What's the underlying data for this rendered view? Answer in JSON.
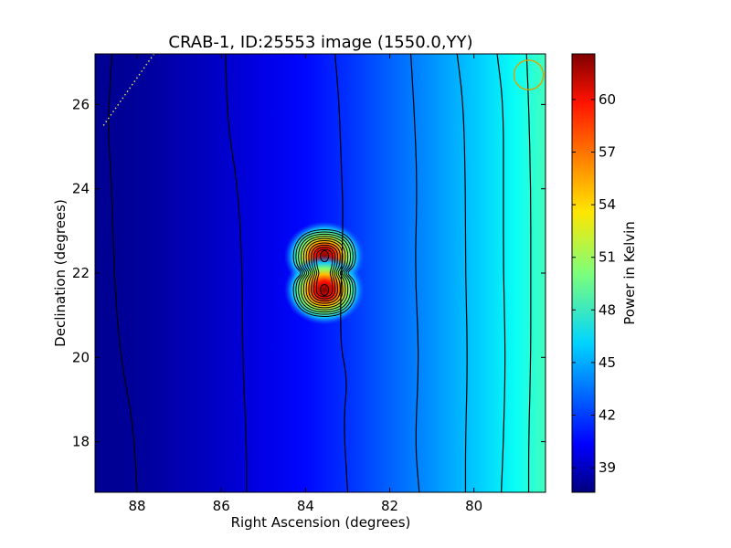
{
  "chart_data": {
    "type": "heatmap",
    "title": "CRAB-1, ID:25553 image (1550.0,YY)",
    "xlabel": "Right Ascension (degrees)",
    "ylabel": "Declination (degrees)",
    "xlim": [
      89.0,
      78.3
    ],
    "ylim": [
      16.8,
      27.2
    ],
    "x_ticks": [
      88,
      86,
      84,
      82,
      80
    ],
    "x_tick_labels": [
      "88",
      "86",
      "84",
      "82",
      "80"
    ],
    "y_ticks": [
      18,
      20,
      22,
      24,
      26
    ],
    "y_tick_labels": [
      "18",
      "20",
      "22",
      "24",
      "26"
    ],
    "colorbar": {
      "label": "Power in Kelvin",
      "range": [
        37.6,
        62.6
      ],
      "ticks": [
        39,
        42,
        45,
        48,
        51,
        54,
        57,
        60
      ],
      "tick_labels": [
        "39",
        "42",
        "45",
        "48",
        "51",
        "54",
        "57",
        "60"
      ],
      "colormap": "jet"
    },
    "background_gradient": [
      {
        "ra": 89.0,
        "kelvin": 38.0
      },
      {
        "ra": 87.8,
        "kelvin": 38.3
      },
      {
        "ra": 87.0,
        "kelvin": 38.8
      },
      {
        "ra": 86.0,
        "kelvin": 39.4
      },
      {
        "ra": 85.0,
        "kelvin": 40.1
      },
      {
        "ra": 84.0,
        "kelvin": 40.9
      },
      {
        "ra": 83.0,
        "kelvin": 41.9
      },
      {
        "ra": 82.0,
        "kelvin": 43.1
      },
      {
        "ra": 81.0,
        "kelvin": 44.3
      },
      {
        "ra": 80.0,
        "kelvin": 45.6
      },
      {
        "ra": 79.0,
        "kelvin": 47.2
      },
      {
        "ra": 78.3,
        "kelvin": 48.6
      }
    ],
    "sources": [
      {
        "ra": 83.55,
        "dec": 22.4,
        "peak_kelvin": 62.0
      },
      {
        "ra": 83.55,
        "dec": 21.6,
        "peak_kelvin": 62.0
      }
    ],
    "background_contours": [
      {
        "level": 39,
        "points": [
          [
            88.6,
            27.2
          ],
          [
            88.7,
            25.5
          ],
          [
            88.6,
            24.0
          ],
          [
            88.55,
            22.0
          ],
          [
            88.4,
            20.0
          ],
          [
            88.1,
            18.5
          ],
          [
            88.0,
            16.8
          ]
        ]
      },
      {
        "level": 40,
        "points": [
          [
            85.9,
            27.2
          ],
          [
            85.85,
            25.5
          ],
          [
            85.6,
            24.0
          ],
          [
            85.5,
            22.0
          ],
          [
            85.5,
            20.0
          ],
          [
            85.4,
            18.0
          ],
          [
            85.4,
            16.8
          ]
        ]
      },
      {
        "level": 41,
        "points": [
          [
            83.3,
            27.2
          ],
          [
            83.2,
            26.0
          ],
          [
            83.15,
            24.5
          ],
          [
            83.1,
            23.3
          ],
          [
            83.2,
            20.4
          ],
          [
            83.0,
            19.5
          ],
          [
            83.1,
            18.5
          ],
          [
            83.0,
            16.8
          ]
        ]
      },
      {
        "level": 43,
        "points": [
          [
            81.5,
            27.2
          ],
          [
            81.4,
            25.5
          ],
          [
            81.35,
            24.0
          ],
          [
            81.4,
            22.0
          ],
          [
            81.3,
            20.0
          ],
          [
            81.4,
            18.0
          ],
          [
            81.3,
            16.8
          ]
        ]
      },
      {
        "level": 45,
        "points": [
          [
            80.4,
            27.2
          ],
          [
            80.25,
            26.0
          ],
          [
            80.2,
            24.0
          ],
          [
            80.2,
            22.0
          ],
          [
            80.15,
            20.0
          ],
          [
            80.2,
            18.0
          ],
          [
            80.2,
            16.8
          ]
        ]
      },
      {
        "level": 46.5,
        "points": [
          [
            79.45,
            27.2
          ],
          [
            79.3,
            26.0
          ],
          [
            79.3,
            24.0
          ],
          [
            79.3,
            22.0
          ],
          [
            79.25,
            20.0
          ],
          [
            79.3,
            18.0
          ],
          [
            79.35,
            16.8
          ]
        ]
      },
      {
        "level": 48,
        "points": [
          [
            78.75,
            27.2
          ],
          [
            78.7,
            26.0
          ],
          [
            78.65,
            24.0
          ],
          [
            78.65,
            22.0
          ],
          [
            78.65,
            20.0
          ],
          [
            78.7,
            18.0
          ],
          [
            78.7,
            16.8
          ]
        ]
      }
    ],
    "source_contour_count": 10,
    "beam_circle": {
      "ra": 78.7,
      "dec": 26.7,
      "radius_deg": 0.35
    },
    "dotted_line": [
      [
        88.8,
        25.5
      ],
      [
        87.6,
        27.2
      ]
    ]
  }
}
